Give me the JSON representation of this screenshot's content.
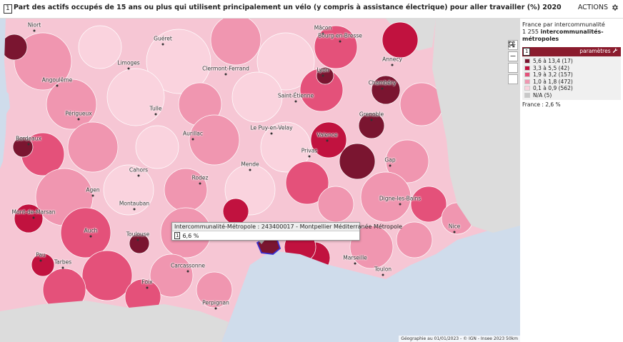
{
  "header": {
    "badge": "1",
    "title": "Part des actifs occupés de 15 ans ou plus qui utilisent principalement un vélo (y compris à assistance électrique) pour aller travailler (%) 2020",
    "actions_label": "ACTIONS",
    "actions_icon": "gear-icon"
  },
  "map": {
    "colors": {
      "class1": "#7a1530",
      "class2": "#c1123f",
      "class3": "#e4517a",
      "class4": "#f096b0",
      "class5": "#fad3de",
      "na": "#c8c8c8",
      "sea": "#cfdceb",
      "outside": "#dcdcdc",
      "border": "#ffffff",
      "highlight": "#3a2fd0"
    },
    "cities": [
      {
        "name": "Niort"
      },
      {
        "name": "Guéret"
      },
      {
        "name": "Mâcon"
      },
      {
        "name": "Bourg-en-Bresse"
      },
      {
        "name": "Annecy"
      },
      {
        "name": "Angoulême"
      },
      {
        "name": "Limoges"
      },
      {
        "name": "Clermont-Ferrand"
      },
      {
        "name": "Lyon"
      },
      {
        "name": "Chambéry"
      },
      {
        "name": "Saint-Étienne"
      },
      {
        "name": "Périgueux"
      },
      {
        "name": "Tulle"
      },
      {
        "name": "Grenoble"
      },
      {
        "name": "Aurillac"
      },
      {
        "name": "Le Puy-en-Velay"
      },
      {
        "name": "Bordeaux"
      },
      {
        "name": "Valence"
      },
      {
        "name": "Privas"
      },
      {
        "name": "Cahors"
      },
      {
        "name": "Mende"
      },
      {
        "name": "Gap"
      },
      {
        "name": "Rodez"
      },
      {
        "name": "Agen"
      },
      {
        "name": "Digne-les-Bains"
      },
      {
        "name": "Montauban"
      },
      {
        "name": "Mont-de-Marsan"
      },
      {
        "name": "Auch"
      },
      {
        "name": "Toulouse"
      },
      {
        "name": "Montpellier"
      },
      {
        "name": "Nice"
      },
      {
        "name": "Pau"
      },
      {
        "name": "Marseille"
      },
      {
        "name": "Tarbes"
      },
      {
        "name": "Carcassonne"
      },
      {
        "name": "Toulon"
      },
      {
        "name": "Foix"
      },
      {
        "name": "Perpignan"
      }
    ],
    "tooltip": {
      "header": "Intercommunalité-Métropole : 243400017 - Montpellier Méditerranée Métropole",
      "badge": "1",
      "value": "6,6 %"
    },
    "attribution": "Géographie au 01/01/2023 - © IGN - Insee 2023  50km"
  },
  "zoom": {
    "in": "+",
    "out": "−",
    "search_icon": "magnifier-icon",
    "fullscreen_icon": "expand-icon"
  },
  "legend": {
    "title": "France par intercommunalité",
    "count_number": "1 255",
    "count_label": "intercommunalités-métropoles",
    "badge": "1",
    "params_label": "paramètres",
    "params_icon": "wrench-icon",
    "classes": [
      {
        "label": "5,6 à 13,4 (17)",
        "color": "#7a1530"
      },
      {
        "label": "3,3 à 5,5 (42)",
        "color": "#c1123f"
      },
      {
        "label": "1,9 à 3,2 (157)",
        "color": "#e4517a"
      },
      {
        "label": "1,0 à 1,8 (472)",
        "color": "#f096b0"
      },
      {
        "label": "0,1 à 0,9 (562)",
        "color": "#fad3de"
      },
      {
        "label": "N/A (5)",
        "color": "#c8c8c8"
      }
    ],
    "france_value": "France : 2,6 %"
  }
}
